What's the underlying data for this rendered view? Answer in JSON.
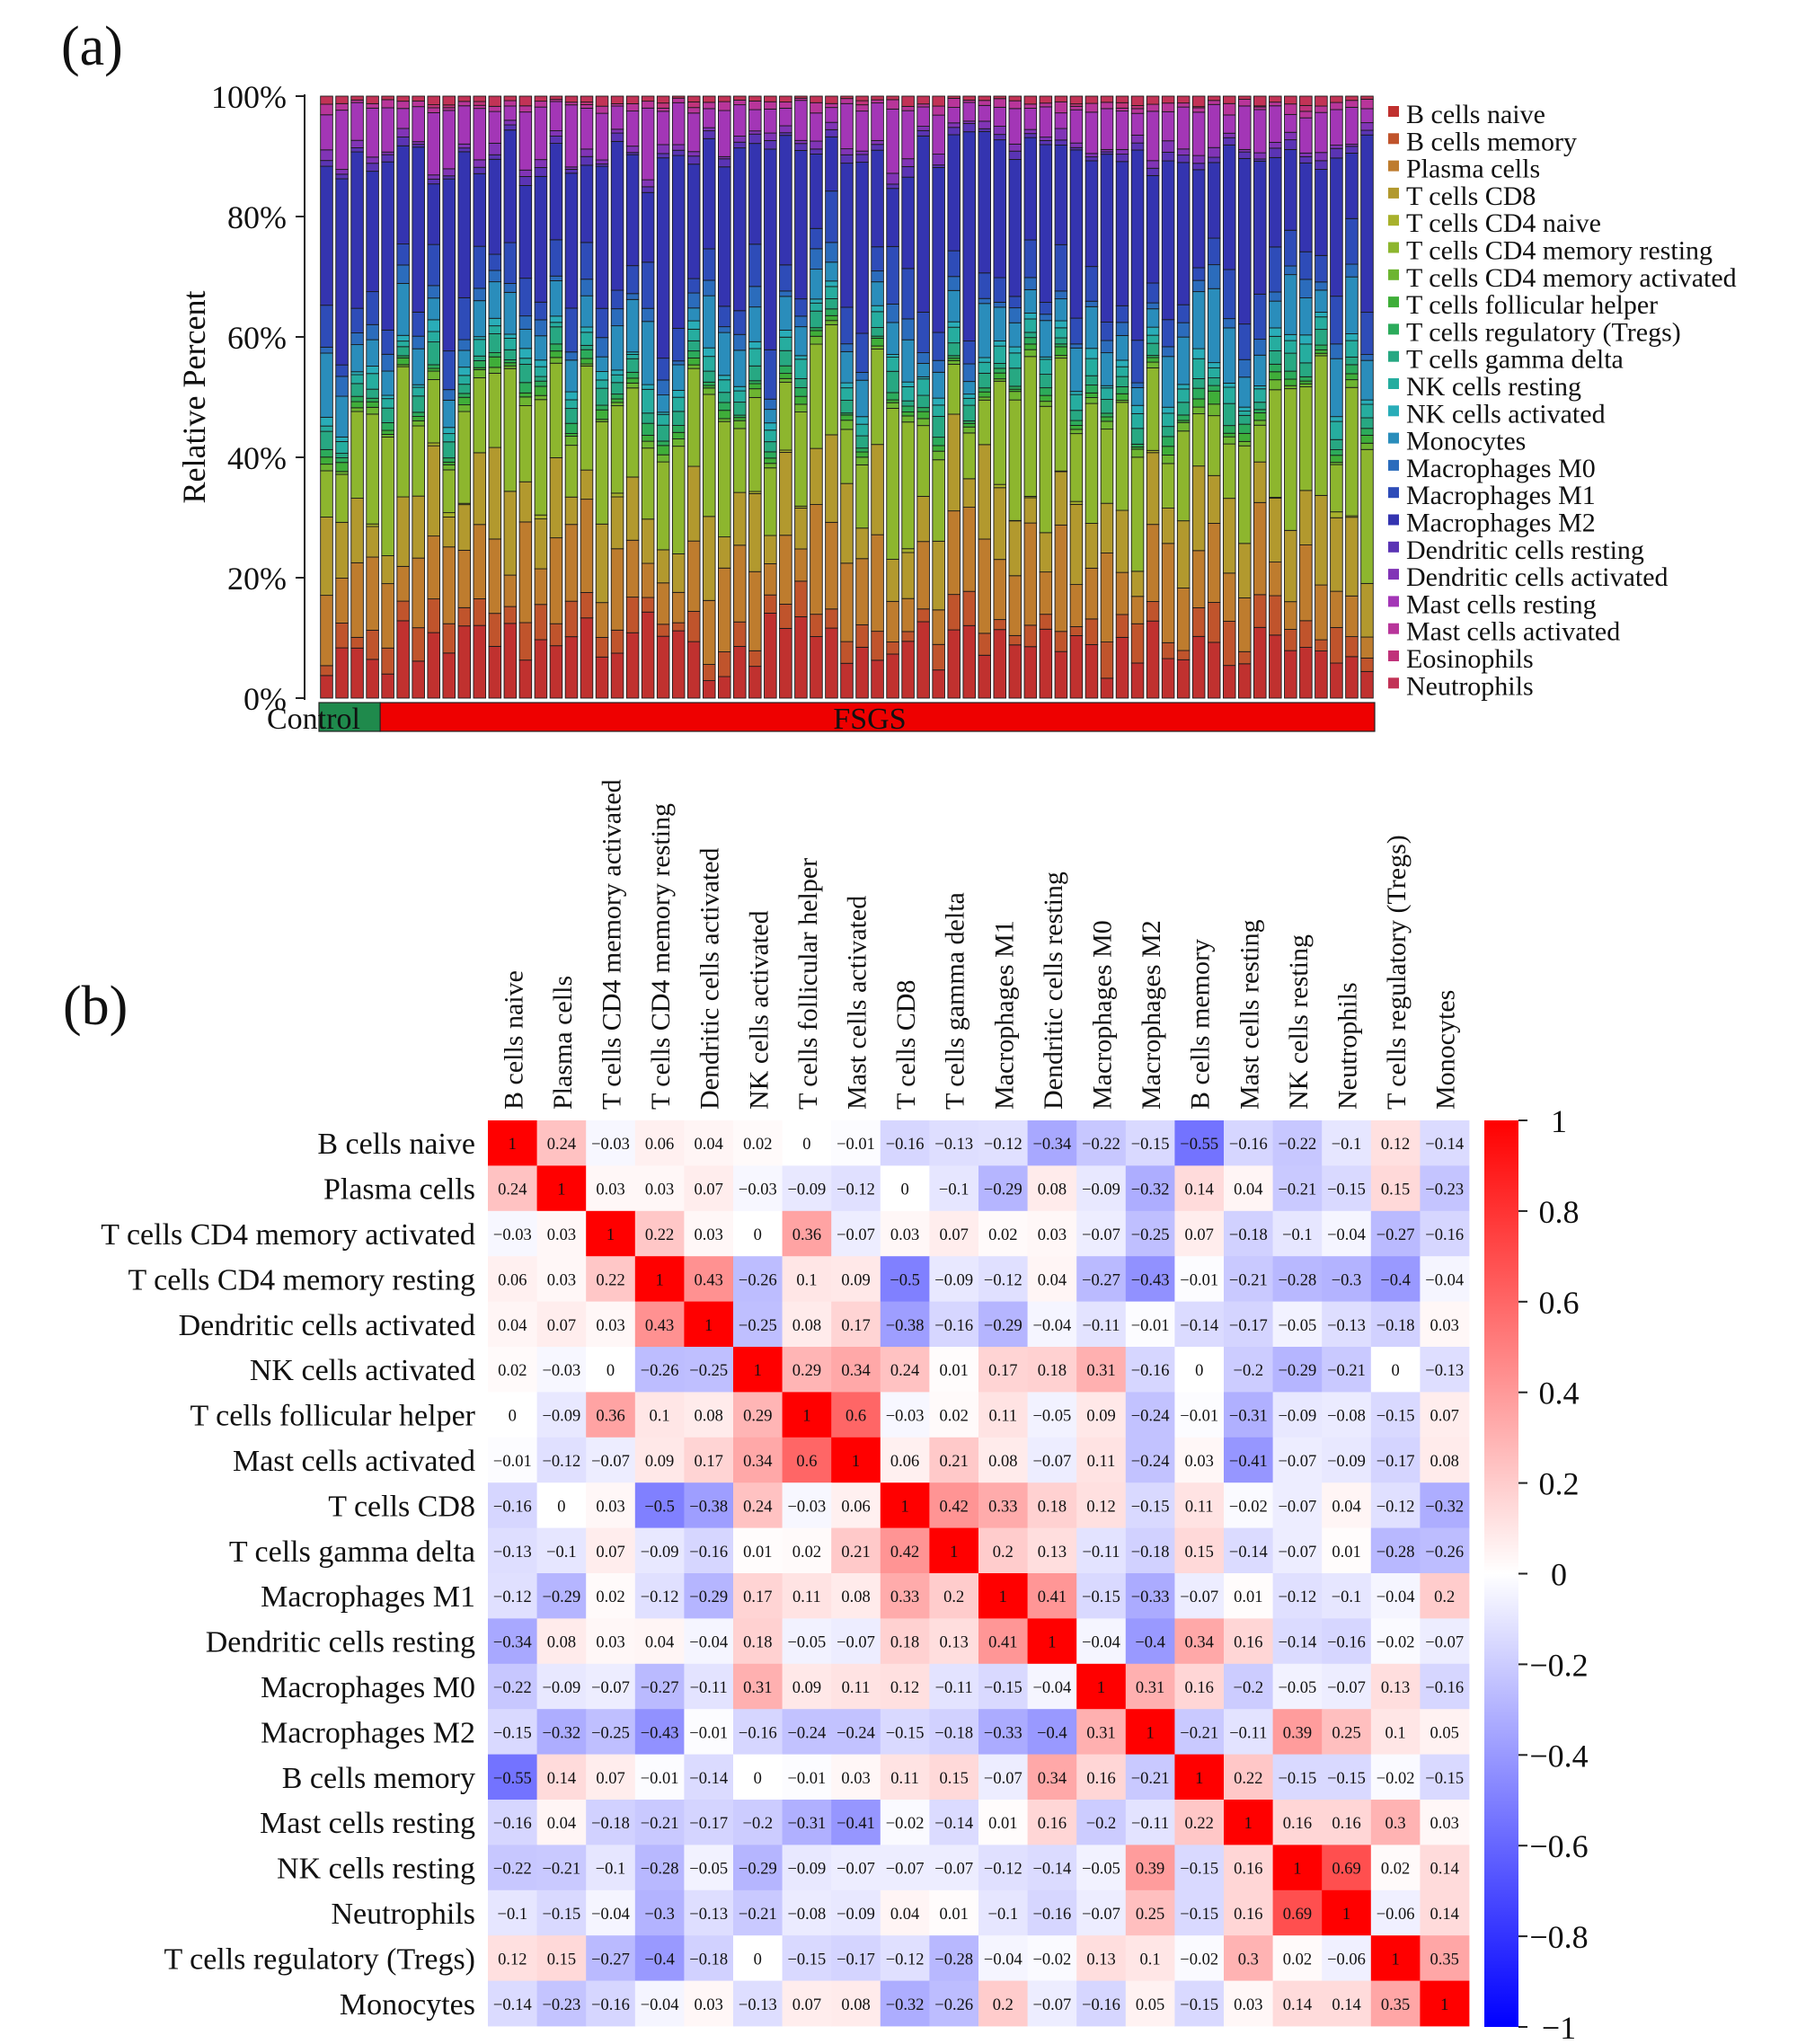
{
  "figure": {
    "panel_a_label": "(a)",
    "panel_b_label": "(b)"
  },
  "chart_data": [
    {
      "type": "bar",
      "stacked": true,
      "panel": "(a)",
      "ylabel": "Relative Percent",
      "y_ticks": [
        "0%",
        "20%",
        "40%",
        "60%",
        "80%",
        "100%"
      ],
      "ylim": [
        0,
        100
      ],
      "n_samples": 69,
      "groups": [
        {
          "name": "Control",
          "n": 4,
          "color": "#1f8a4c"
        },
        {
          "name": "FSGS",
          "n": 65,
          "color": "#ee0000"
        }
      ],
      "legend": [
        {
          "name": "B cells naive",
          "color": "#c0312f"
        },
        {
          "name": "B cells memory",
          "color": "#c0542c"
        },
        {
          "name": "Plasma cells",
          "color": "#be7c2e"
        },
        {
          "name": "T cells CD8",
          "color": "#b2992e"
        },
        {
          "name": "T cells CD4 naive",
          "color": "#a8b12c"
        },
        {
          "name": "T cells CD4 memory resting",
          "color": "#8db62e"
        },
        {
          "name": "T cells CD4 memory activated",
          "color": "#6db531"
        },
        {
          "name": "T cells follicular helper",
          "color": "#3fae39"
        },
        {
          "name": "T cells regulatory (Tregs)",
          "color": "#2cab5b"
        },
        {
          "name": "T cells gamma delta",
          "color": "#27a882"
        },
        {
          "name": "NK cells resting",
          "color": "#26ad9f"
        },
        {
          "name": "NK cells activated",
          "color": "#29adb8"
        },
        {
          "name": "Monocytes",
          "color": "#2a8dbb"
        },
        {
          "name": "Macrophages M0",
          "color": "#2b6cbc"
        },
        {
          "name": "Macrophages M1",
          "color": "#2e4cb8"
        },
        {
          "name": "Macrophages M2",
          "color": "#3434b0"
        },
        {
          "name": "Dendritic cells resting",
          "color": "#5a34b4"
        },
        {
          "name": "Dendritic cells activated",
          "color": "#8134b6"
        },
        {
          "name": "Mast cells resting",
          "color": "#a336b6"
        },
        {
          "name": "Mast cells activated",
          "color": "#b8359a"
        },
        {
          "name": "Eosinophils",
          "color": "#c0337a"
        },
        {
          "name": "Neutrophils",
          "color": "#c23356"
        }
      ],
      "representative_profile_percent": {
        "B cells naive": 9,
        "B cells memory": 4,
        "Plasma cells": 10,
        "T cells CD8": 10,
        "T cells CD4 naive": 0,
        "T cells CD4 memory resting": 14,
        "T cells CD4 memory activated": 1,
        "T cells follicular helper": 1,
        "T cells regulatory (Tregs)": 1,
        "T cells gamma delta": 2,
        "NK cells resting": 2,
        "NK cells activated": 1,
        "Monocytes": 6,
        "Macrophages M0": 2,
        "Macrophages M1": 5,
        "Macrophages M2": 22,
        "Dendritic cells resting": 1,
        "Dendritic cells activated": 1,
        "Mast cells resting": 6,
        "Mast cells activated": 1,
        "Eosinophils": 0,
        "Neutrophils": 1
      }
    },
    {
      "type": "heatmap",
      "panel": "(b)",
      "labels": [
        "B cells naive",
        "Plasma cells",
        "T cells CD4 memory activated",
        "T cells CD4 memory resting",
        "Dendritic cells activated",
        "NK cells activated",
        "T cells follicular helper",
        "Mast cells activated",
        "T cells CD8",
        "T cells gamma delta",
        "Macrophages M1",
        "Dendritic cells resting",
        "Macrophages M0",
        "Macrophages M2",
        "B cells memory",
        "Mast cells resting",
        "NK cells resting",
        "Neutrophils",
        "T cells regulatory (Tregs)",
        "Monocytes"
      ],
      "matrix": [
        [
          1,
          0.24,
          -0.03,
          0.06,
          0.04,
          0.02,
          0,
          -0.01,
          -0.16,
          -0.13,
          -0.12,
          -0.34,
          -0.22,
          -0.15,
          -0.55,
          -0.16,
          -0.22,
          -0.1,
          0.12,
          -0.14
        ],
        [
          0.24,
          1,
          0.03,
          0.03,
          0.07,
          -0.03,
          -0.09,
          -0.12,
          0,
          -0.1,
          -0.29,
          0.08,
          -0.09,
          -0.32,
          0.14,
          0.04,
          -0.21,
          -0.15,
          0.15,
          -0.23
        ],
        [
          -0.03,
          0.03,
          1,
          0.22,
          0.03,
          0,
          0.36,
          -0.07,
          0.03,
          0.07,
          0.02,
          0.03,
          -0.07,
          -0.25,
          0.07,
          -0.18,
          -0.1,
          -0.04,
          -0.27,
          -0.16
        ],
        [
          0.06,
          0.03,
          0.22,
          1,
          0.43,
          -0.26,
          0.1,
          0.09,
          -0.5,
          -0.09,
          -0.12,
          0.04,
          -0.27,
          -0.43,
          -0.01,
          -0.21,
          -0.28,
          -0.3,
          -0.4,
          -0.04
        ],
        [
          0.04,
          0.07,
          0.03,
          0.43,
          1,
          -0.25,
          0.08,
          0.17,
          -0.38,
          -0.16,
          -0.29,
          -0.04,
          -0.11,
          -0.01,
          -0.14,
          -0.17,
          -0.05,
          -0.13,
          -0.18,
          0.03
        ],
        [
          0.02,
          -0.03,
          0,
          -0.26,
          -0.25,
          1,
          0.29,
          0.34,
          0.24,
          0.01,
          0.17,
          0.18,
          0.31,
          -0.16,
          0,
          -0.2,
          -0.29,
          -0.21,
          0,
          -0.13
        ],
        [
          0,
          -0.09,
          0.36,
          0.1,
          0.08,
          0.29,
          1,
          0.6,
          -0.03,
          0.02,
          0.11,
          -0.05,
          0.09,
          -0.24,
          -0.01,
          -0.31,
          -0.09,
          -0.08,
          -0.15,
          0.07
        ],
        [
          -0.01,
          -0.12,
          -0.07,
          0.09,
          0.17,
          0.34,
          0.6,
          1,
          0.06,
          0.21,
          0.08,
          -0.07,
          0.11,
          -0.24,
          0.03,
          -0.41,
          -0.07,
          -0.09,
          -0.17,
          0.08
        ],
        [
          -0.16,
          0,
          0.03,
          -0.5,
          -0.38,
          0.24,
          -0.03,
          0.06,
          1,
          0.42,
          0.33,
          0.18,
          0.12,
          -0.15,
          0.11,
          -0.02,
          -0.07,
          0.04,
          -0.12,
          -0.32
        ],
        [
          -0.13,
          -0.1,
          0.07,
          -0.09,
          -0.16,
          0.01,
          0.02,
          0.21,
          0.42,
          1,
          0.2,
          0.13,
          -0.11,
          -0.18,
          0.15,
          -0.14,
          -0.07,
          0.01,
          -0.28,
          -0.26
        ],
        [
          -0.12,
          -0.29,
          0.02,
          -0.12,
          -0.29,
          0.17,
          0.11,
          0.08,
          0.33,
          0.2,
          1,
          0.41,
          -0.15,
          -0.33,
          -0.07,
          0.01,
          -0.12,
          -0.1,
          -0.04,
          0.2
        ],
        [
          -0.34,
          0.08,
          0.03,
          0.04,
          -0.04,
          0.18,
          -0.05,
          -0.07,
          0.18,
          0.13,
          0.41,
          1,
          -0.04,
          -0.4,
          0.34,
          0.16,
          -0.14,
          -0.16,
          -0.02,
          -0.07
        ],
        [
          -0.22,
          -0.09,
          -0.07,
          -0.27,
          -0.11,
          0.31,
          0.09,
          0.11,
          0.12,
          -0.11,
          -0.15,
          -0.04,
          1,
          0.31,
          0.16,
          -0.2,
          -0.05,
          -0.07,
          0.13,
          -0.16
        ],
        [
          -0.15,
          -0.32,
          -0.25,
          -0.43,
          -0.01,
          -0.16,
          -0.24,
          -0.24,
          -0.15,
          -0.18,
          -0.33,
          -0.4,
          0.31,
          1,
          -0.21,
          -0.11,
          0.39,
          0.25,
          0.1,
          0.05
        ],
        [
          -0.55,
          0.14,
          0.07,
          -0.01,
          -0.14,
          0,
          -0.01,
          0.03,
          0.11,
          0.15,
          -0.07,
          0.34,
          0.16,
          -0.21,
          1,
          0.22,
          -0.15,
          -0.15,
          -0.02,
          -0.15
        ],
        [
          -0.16,
          0.04,
          -0.18,
          -0.21,
          -0.17,
          -0.2,
          -0.31,
          -0.41,
          -0.02,
          -0.14,
          0.01,
          0.16,
          -0.2,
          -0.11,
          0.22,
          1,
          0.16,
          0.16,
          0.3,
          0.03
        ],
        [
          -0.22,
          -0.21,
          -0.1,
          -0.28,
          -0.05,
          -0.29,
          -0.09,
          -0.07,
          -0.07,
          -0.07,
          -0.12,
          -0.14,
          -0.05,
          0.39,
          -0.15,
          0.16,
          1,
          0.69,
          0.02,
          0.14
        ],
        [
          -0.1,
          -0.15,
          -0.04,
          -0.3,
          -0.13,
          -0.21,
          -0.08,
          -0.09,
          0.04,
          0.01,
          -0.1,
          -0.16,
          -0.07,
          0.25,
          -0.15,
          0.16,
          0.69,
          1,
          -0.06,
          0.14
        ],
        [
          0.12,
          0.15,
          -0.27,
          -0.4,
          -0.18,
          0,
          -0.15,
          -0.17,
          -0.12,
          -0.28,
          -0.04,
          -0.02,
          0.13,
          0.1,
          -0.02,
          0.3,
          0.02,
          -0.06,
          1,
          0.35
        ],
        [
          -0.14,
          -0.23,
          -0.16,
          -0.04,
          0.03,
          -0.13,
          0.07,
          0.08,
          -0.32,
          -0.26,
          0.2,
          -0.07,
          -0.16,
          0.05,
          -0.15,
          0.03,
          0.14,
          0.14,
          0.35,
          1
        ]
      ],
      "colorbar": {
        "range": [
          -1,
          1
        ],
        "ticks": [
          "1",
          "0.8",
          "0.6",
          "0.4",
          "0.2",
          "0",
          "−0.2",
          "−0.4",
          "−0.6",
          "−0.8",
          "−1"
        ],
        "low_color": "#0000ff",
        "mid_color": "#ffffff",
        "high_color": "#ff0000"
      }
    }
  ]
}
